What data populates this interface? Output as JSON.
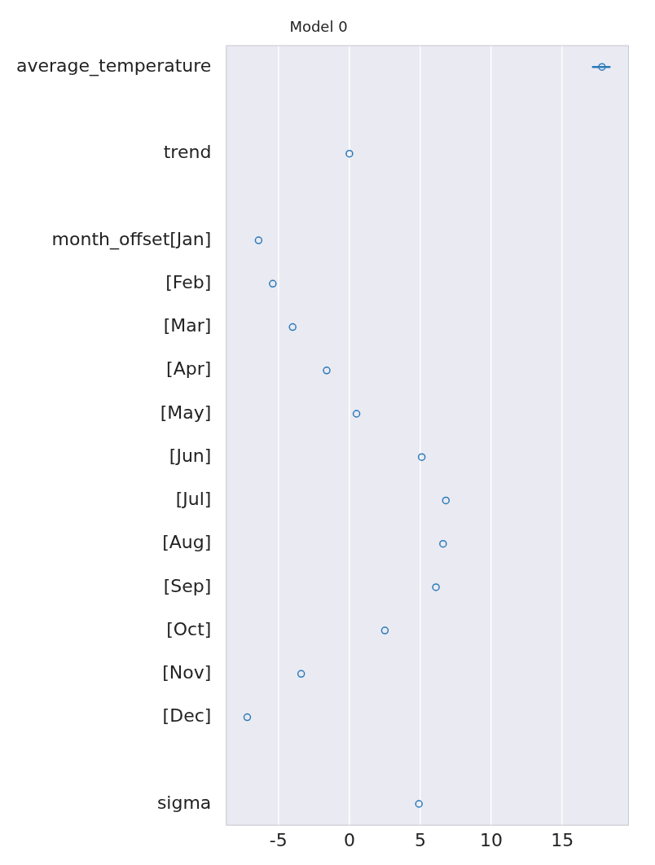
{
  "chart_data": {
    "type": "forest",
    "title": "Model 0",
    "categories": [
      "average_temperature",
      null,
      "trend",
      null,
      "month_offset[Jan]",
      "[Feb]",
      "[Mar]",
      "[Apr]",
      "[May]",
      "[Jun]",
      "[Jul]",
      "[Aug]",
      "[Sep]",
      "[Oct]",
      "[Nov]",
      "[Dec]",
      null,
      "sigma"
    ],
    "values": [
      17.8,
      null,
      0.0,
      null,
      -6.4,
      -5.4,
      -4.0,
      -1.6,
      0.5,
      5.1,
      6.8,
      6.6,
      6.1,
      2.5,
      -3.4,
      -7.2,
      null,
      4.9
    ],
    "intervals": [
      [
        17.1,
        18.4
      ],
      null,
      null,
      null,
      null,
      null,
      null,
      null,
      null,
      null,
      null,
      null,
      null,
      null,
      null,
      null,
      null,
      null
    ],
    "color": "#2a7ab9",
    "marker": "circle",
    "xlim": [
      -8.7,
      19.7
    ],
    "xticks": [
      -5,
      0,
      5,
      10,
      15
    ],
    "grid": true
  }
}
